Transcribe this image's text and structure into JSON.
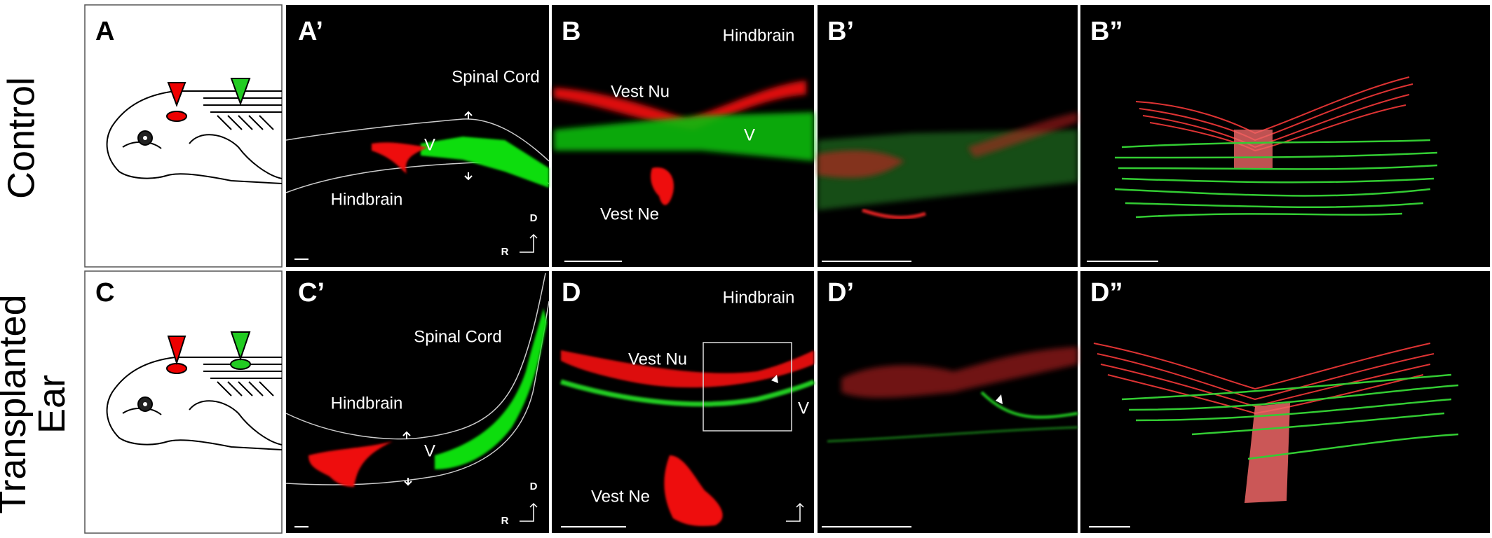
{
  "row_labels": [
    "Control",
    "Transplanted Ear"
  ],
  "panels": [
    {
      "label": "A"
    },
    {
      "label": "A’",
      "texts": [
        "Spinal Cord",
        "Hindbrain",
        "V",
        "D",
        "R"
      ]
    },
    {
      "label": "B",
      "texts": [
        "Hindbrain",
        "Vest Nu",
        "V",
        "Vest Ne"
      ]
    },
    {
      "label": "B’"
    },
    {
      "label": "B”"
    },
    {
      "label": "C"
    },
    {
      "label": "C’",
      "texts": [
        "Spinal Cord",
        "Hindbrain",
        "V",
        "D",
        "R"
      ]
    },
    {
      "label": "D",
      "texts": [
        "Hindbrain",
        "Vest Nu",
        "V",
        "Vest Ne"
      ]
    },
    {
      "label": "D’"
    },
    {
      "label": "D”"
    }
  ]
}
